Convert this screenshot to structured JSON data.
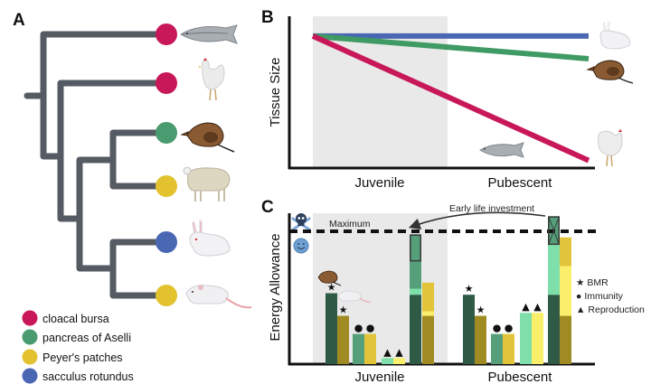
{
  "panels": {
    "a": {
      "label": "A",
      "tree_color": "#555a63",
      "leaves": [
        {
          "animal": "salmon",
          "tissue": "cloacal bursa",
          "color": "#c8185a"
        },
        {
          "animal": "chicken",
          "tissue": "cloacal bursa",
          "color": "#c8185a"
        },
        {
          "animal": "shrew",
          "tissue": "pancreas of Aselli",
          "color": "#4a9b6f"
        },
        {
          "animal": "sheep",
          "tissue": "Peyer's patches",
          "color": "#e2c22e"
        },
        {
          "animal": "rabbit",
          "tissue": "sacculus rotundus",
          "color": "#4a67b4"
        },
        {
          "animal": "mouse",
          "tissue": "Peyer's patches",
          "color": "#e2c22e"
        }
      ],
      "legend": [
        {
          "label": "cloacal bursa",
          "color": "#c8185a"
        },
        {
          "label": "pancreas of Aselli",
          "color": "#4a9b6f"
        },
        {
          "label": "Peyer's patches",
          "color": "#e2c22e"
        },
        {
          "label": "sacculus rotundus",
          "color": "#4a67b4"
        }
      ]
    },
    "b": {
      "label": "B",
      "ylabel": "Tissue Size",
      "categories": [
        "Juvenile",
        "Pubescent"
      ],
      "shaded_phase": "Juvenile"
    },
    "c": {
      "label": "C",
      "ylabel": "Energy Allowance",
      "categories": [
        "Juvenile",
        "Pubescent"
      ],
      "max_label": "Maximum",
      "arrow_label": "Early life investment",
      "legend": [
        {
          "symbol": "★",
          "label": "BMR"
        },
        {
          "symbol": "●",
          "label": "Immunity"
        },
        {
          "symbol": "▲",
          "label": "Reproduction"
        }
      ],
      "icons": {
        "above_max": "skull-crossbones",
        "below_max": "smiley-face"
      }
    }
  },
  "chart_data": [
    {
      "type": "line",
      "title": "",
      "xlabel": "",
      "ylabel": "Tissue Size",
      "x": [
        "Juvenile start",
        "Pubescent end"
      ],
      "ylim": [
        0,
        1
      ],
      "series": [
        {
          "name": "sacculus rotundus (rabbit)",
          "color": "#4a67b4",
          "values": [
            0.87,
            0.87
          ]
        },
        {
          "name": "pancreas of Aselli (shrew)",
          "color": "#3f9a63",
          "values": [
            0.87,
            0.72
          ]
        },
        {
          "name": "cloacal bursa (chicken/salmon)",
          "color": "#c8185a",
          "values": [
            0.87,
            0.05
          ]
        }
      ],
      "tick_labels": [
        "Juvenile",
        "Pubescent"
      ],
      "grid": false
    },
    {
      "type": "bar",
      "title": "",
      "ylabel": "Energy Allowance",
      "categories": [
        "Juvenile",
        "Pubescent"
      ],
      "ylim": [
        0,
        1
      ],
      "maximum": 0.88,
      "series": [
        {
          "name": "Shrew BMR",
          "color": "#2f5a46",
          "values": [
            0.47,
            0.46
          ]
        },
        {
          "name": "Mouse BMR",
          "color": "#a08a22",
          "values": [
            0.32,
            0.32
          ]
        },
        {
          "name": "Shrew Immunity",
          "color": "#55a07a",
          "values": [
            0.2,
            0.2
          ]
        },
        {
          "name": "Mouse Immunity",
          "color": "#e2c43a",
          "values": [
            0.2,
            0.2
          ]
        },
        {
          "name": "Shrew Reproduction",
          "color": "#7fdfaa",
          "values": [
            0.04,
            0.34
          ]
        },
        {
          "name": "Mouse Reproduction",
          "color": "#fbee6a",
          "values": [
            0.04,
            0.34
          ]
        }
      ],
      "stacked_totals": [
        {
          "name": "Shrew total",
          "phase": "Juvenile",
          "segments": [
            {
              "part": "BMR",
              "value": 0.46,
              "color": "#2f5a46"
            },
            {
              "part": "Reproduction",
              "value": 0.04,
              "color": "#7fdfaa"
            },
            {
              "part": "Immunity",
              "value": 0.18,
              "color": "#55a07a"
            },
            {
              "part": "Early life investment",
              "value": 0.18,
              "color": "#55a07a",
              "boxed": true
            }
          ]
        },
        {
          "name": "Mouse total",
          "phase": "Juvenile",
          "segments": [
            {
              "part": "BMR",
              "value": 0.32,
              "color": "#a08a22"
            },
            {
              "part": "Reproduction",
              "value": 0.03,
              "color": "#fbee6a"
            },
            {
              "part": "Immunity",
              "value": 0.19,
              "color": "#e2c43a"
            }
          ]
        },
        {
          "name": "Shrew total",
          "phase": "Pubescent",
          "segments": [
            {
              "part": "BMR",
              "value": 0.46,
              "color": "#2f5a46"
            },
            {
              "part": "Reproduction",
              "value": 0.33,
              "color": "#7fdfaa"
            },
            {
              "part": "Immunity (crossed out)",
              "value": 0.19,
              "color": "#55a07a",
              "boxed": true,
              "crossed": true
            }
          ]
        },
        {
          "name": "Mouse total",
          "phase": "Pubescent",
          "segments": [
            {
              "part": "BMR",
              "value": 0.32,
              "color": "#a08a22"
            },
            {
              "part": "Reproduction",
              "value": 0.33,
              "color": "#fbee6a"
            },
            {
              "part": "Immunity",
              "value": 0.19,
              "color": "#e2c43a"
            }
          ]
        }
      ],
      "annotations": [
        "Maximum",
        "Early life investment"
      ],
      "legend": [
        "★ BMR",
        "● Immunity",
        "▲ Reproduction"
      ]
    }
  ]
}
